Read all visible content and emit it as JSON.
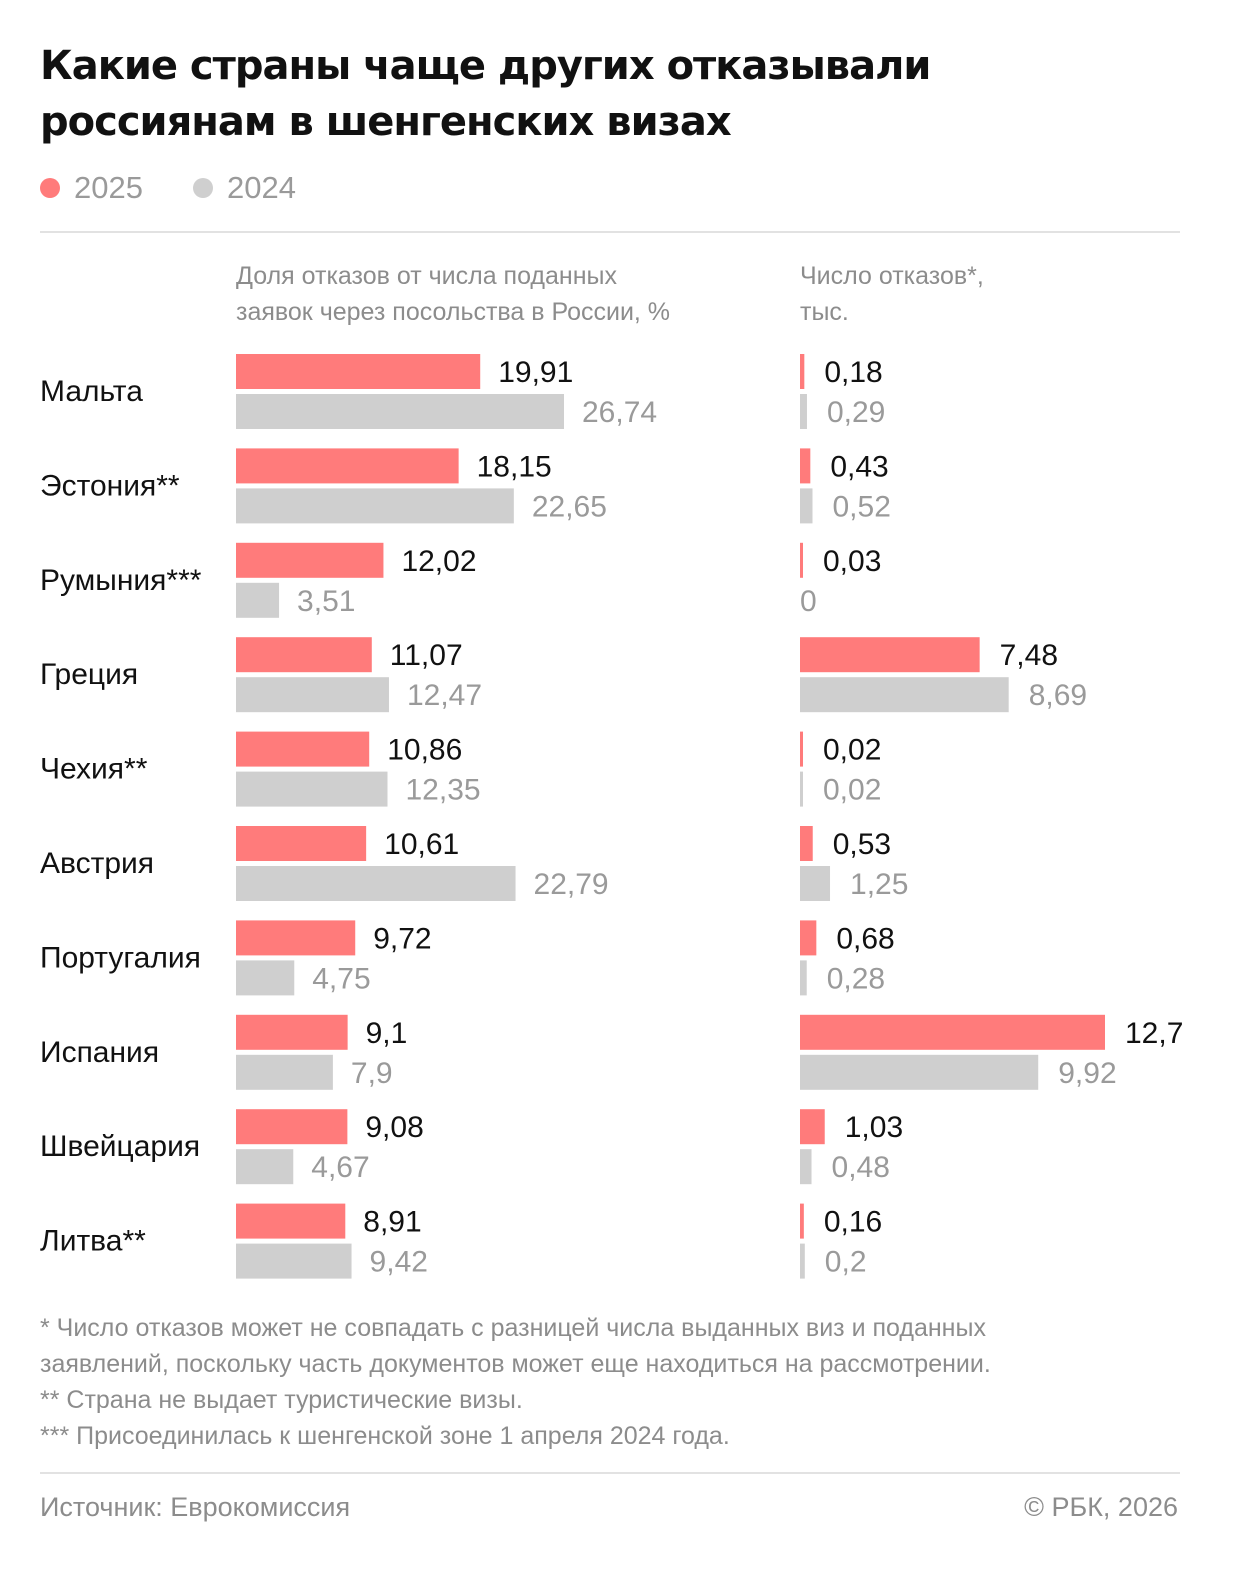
{
  "header": {
    "title_line1": "Какие страны чаще других отказывали",
    "title_line2": "россиянам в шенгенских визах"
  },
  "legend": [
    {
      "label": "2025",
      "color": "#ff7b7b"
    },
    {
      "label": "2024",
      "color": "#cfcfcf"
    }
  ],
  "columns": {
    "left_title_line1": "Доля отказов от числа поданных",
    "left_title_line2": "заявок через посольства в России, %",
    "right_title_line1": "Число отказов*,",
    "right_title_line2": "тыс."
  },
  "chart_data": {
    "type": "bar",
    "orientation": "horizontal",
    "categories": [
      "Мальта",
      "Эстония**",
      "Румыния***",
      "Греция",
      "Чехия**",
      "Австрия",
      "Португалия",
      "Испания",
      "Швейцария",
      "Литва**"
    ],
    "panels": [
      {
        "id": "share",
        "series": [
          {
            "name": "2025",
            "color": "#ff7b7b",
            "values": [
              19.91,
              18.15,
              12.02,
              11.07,
              10.86,
              10.61,
              9.72,
              9.1,
              9.08,
              8.91
            ],
            "labels": [
              "19,91",
              "18,15",
              "12,02",
              "11,07",
              "10,86",
              "10,61",
              "9,72",
              "9,1",
              "9,08",
              "8,91"
            ]
          },
          {
            "name": "2024",
            "color": "#cfcfcf",
            "values": [
              26.74,
              22.65,
              3.51,
              12.47,
              12.35,
              22.79,
              4.75,
              7.9,
              4.67,
              9.42
            ],
            "labels": [
              "26,74",
              "22,65",
              "3,51",
              "12,47",
              "12,35",
              "22,79",
              "4,75",
              "7,9",
              "4,67",
              "9,42"
            ]
          }
        ]
      },
      {
        "id": "count",
        "series": [
          {
            "name": "2025",
            "color": "#ff7b7b",
            "values": [
              0.18,
              0.43,
              0.03,
              7.48,
              0.02,
              0.53,
              0.68,
              12.7,
              1.03,
              0.16
            ],
            "labels": [
              "0,18",
              "0,43",
              "0,03",
              "7,48",
              "0,02",
              "0,53",
              "0,68",
              "12,7",
              "1,03",
              "0,16"
            ]
          },
          {
            "name": "2024",
            "color": "#cfcfcf",
            "values": [
              0.29,
              0.52,
              0,
              8.69,
              0.02,
              1.25,
              0.28,
              9.92,
              0.48,
              0.2
            ],
            "labels": [
              "0,29",
              "0,52",
              "0",
              "8,69",
              "0,02",
              "1,25",
              "0,28",
              "9,92",
              "0,48",
              "0,2"
            ]
          }
        ]
      }
    ],
    "label_color_2025": "#111111",
    "label_color_2024": "#9a9a9a",
    "grid": false
  },
  "footnotes": [
    "* Число отказов может не совпадать с разницей числа выданных виз и поданных",
    "заявлений, поскольку часть документов может еще находиться на рассмотрении.",
    "** Страна не выдает туристические визы.",
    "*** Присоединилась к шенгенской зоне 1 апреля 2024 года."
  ],
  "footer": {
    "source": "Источник: Еврокомиссия",
    "copyright": "© РБК, 2026"
  }
}
